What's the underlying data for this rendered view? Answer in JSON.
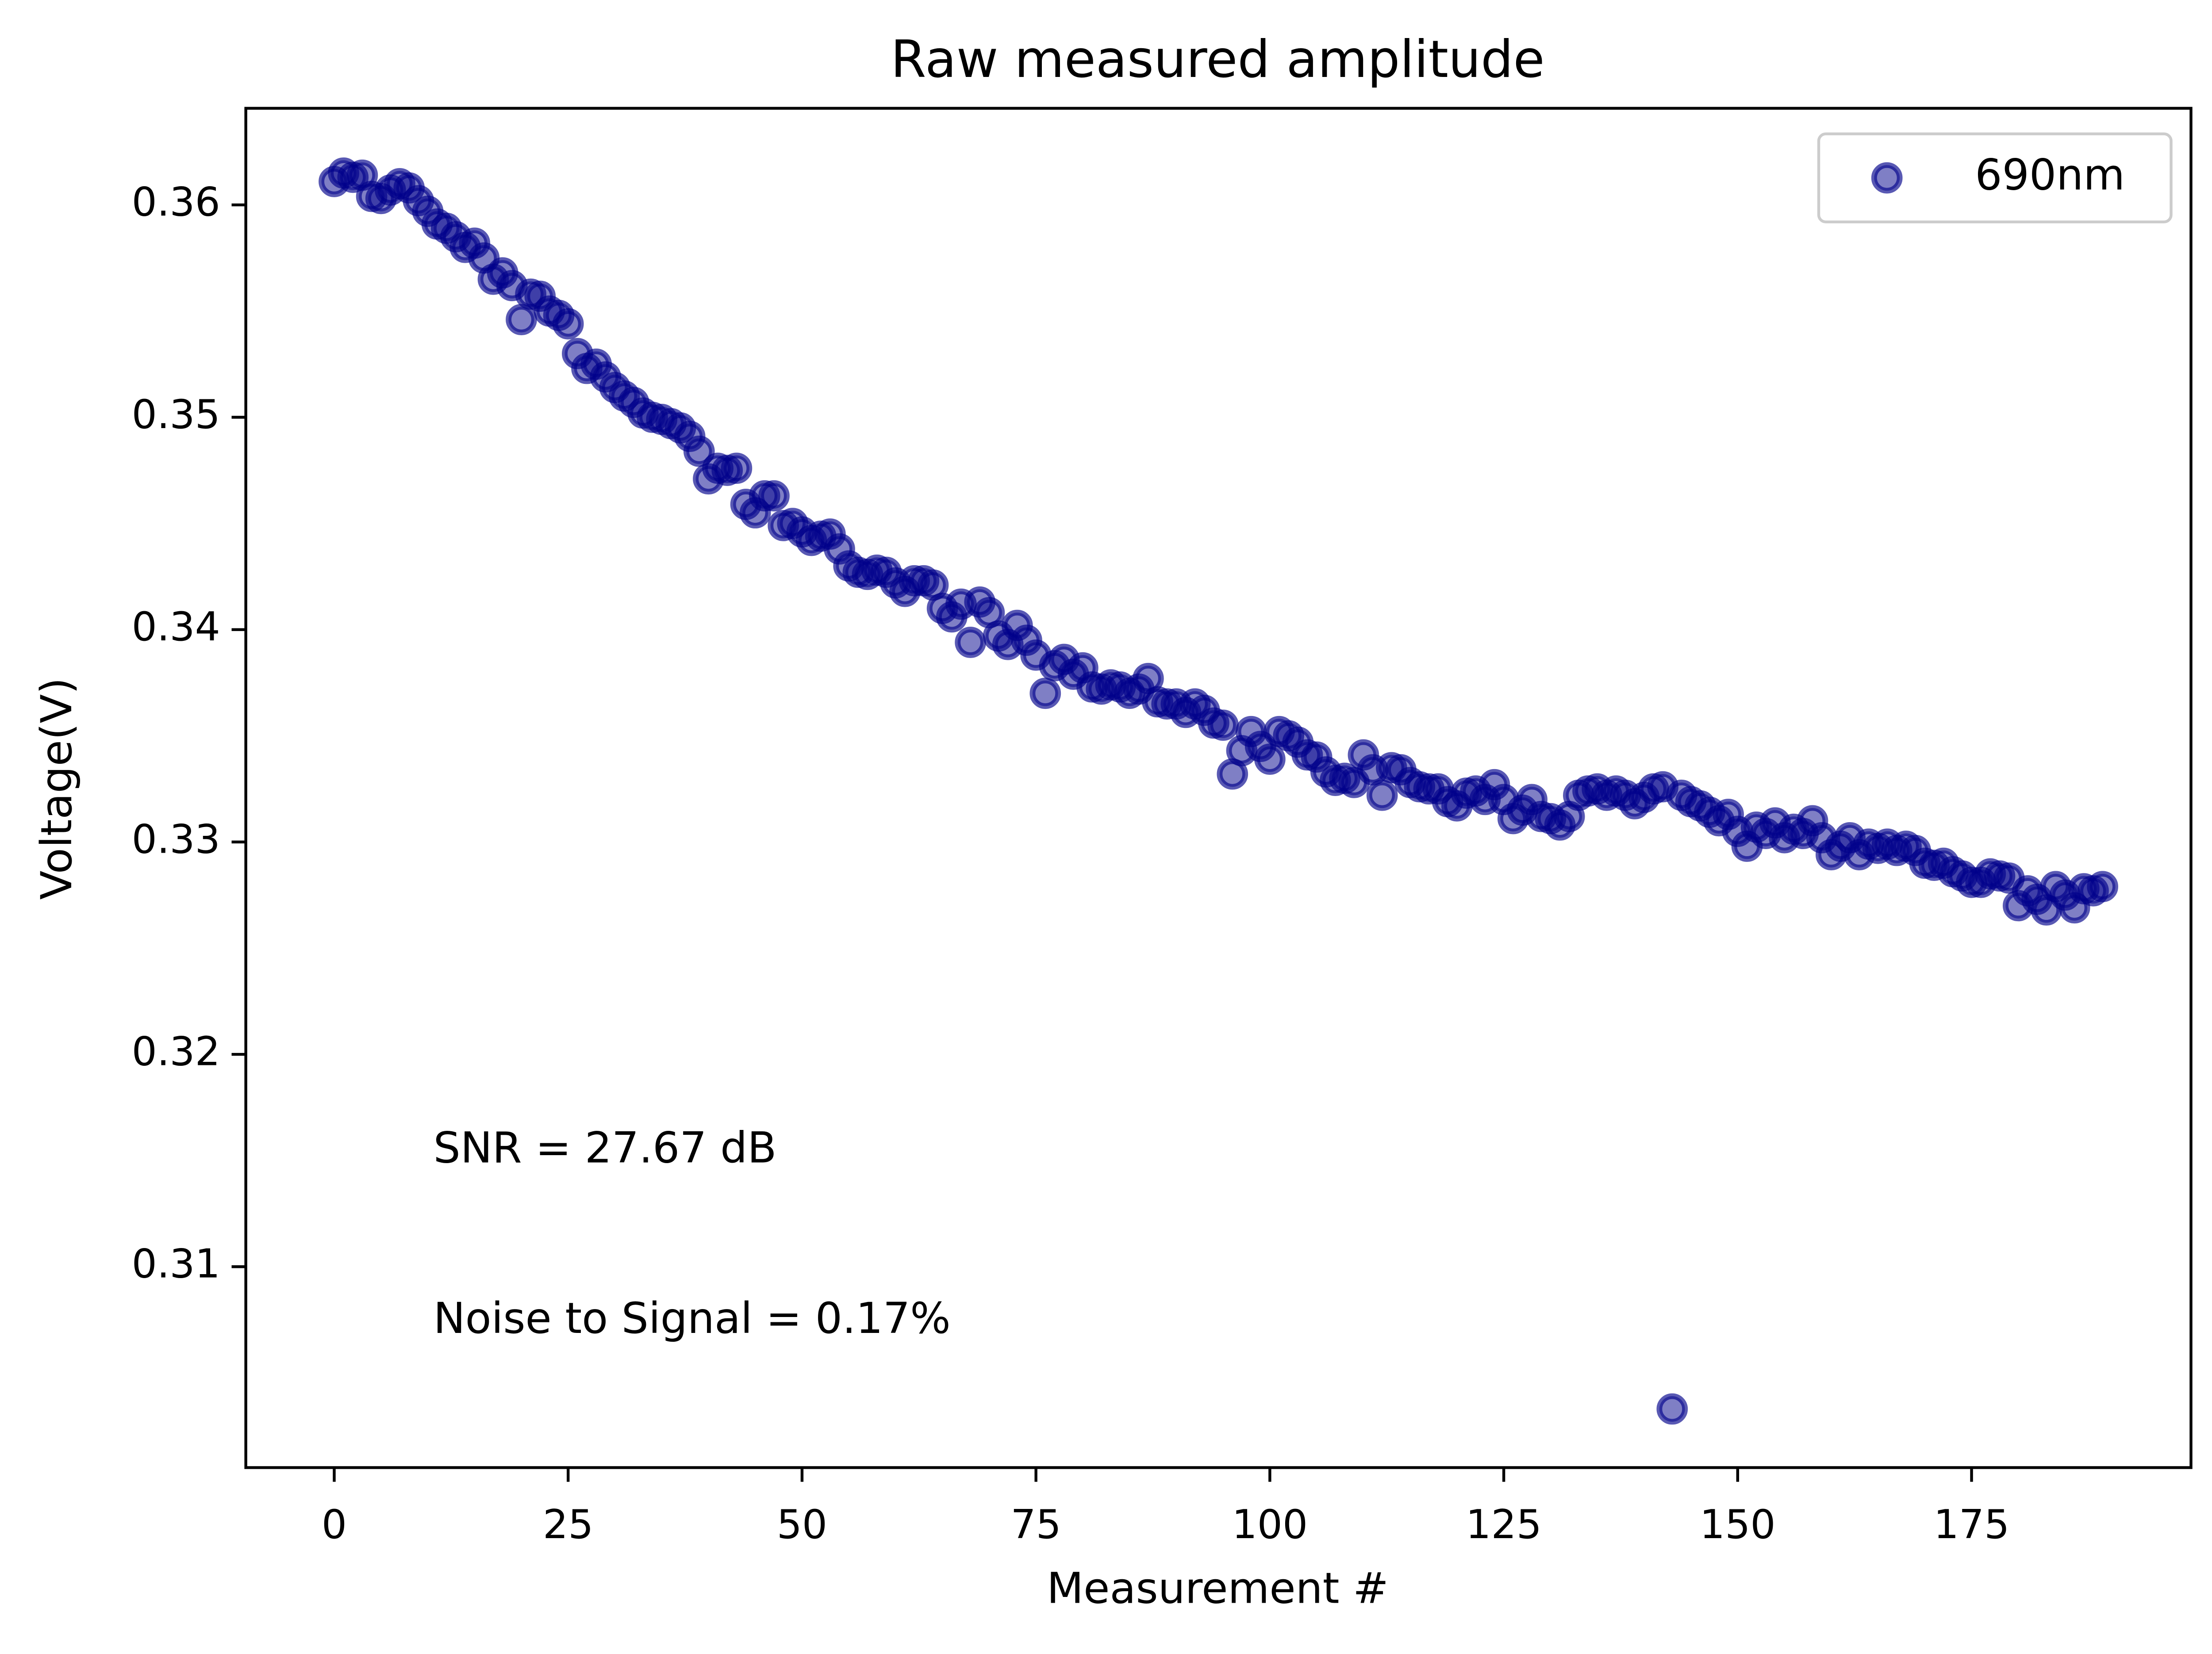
{
  "chart_data": {
    "type": "scatter",
    "title": "Raw measured amplitude",
    "x_label": "Measurement #",
    "y_label": "Voltage(V)",
    "annotations": [
      "SNR = 27.67 dB",
      "Noise to Signal = 0.17%"
    ],
    "legend": "upper right",
    "grid": false,
    "xlim": [
      -9.45,
      198.45
    ],
    "xticks": [
      0,
      25,
      50,
      75,
      100,
      125,
      150,
      175
    ],
    "ylim": [
      0.30054,
      0.36455
    ],
    "yticks": [
      0.31,
      0.32,
      0.33,
      0.34,
      0.35,
      0.36
    ],
    "x": [
      0,
      1,
      2,
      3,
      4,
      5,
      6,
      7,
      8,
      9,
      10,
      11,
      12,
      13,
      14,
      15,
      16,
      17,
      18,
      19,
      20,
      21,
      22,
      23,
      24,
      25,
      26,
      27,
      28,
      29,
      30,
      31,
      32,
      33,
      34,
      35,
      36,
      37,
      38,
      39,
      40,
      41,
      42,
      43,
      44,
      45,
      46,
      47,
      48,
      49,
      50,
      51,
      52,
      53,
      54,
      55,
      56,
      57,
      58,
      59,
      60,
      61,
      62,
      63,
      64,
      65,
      66,
      67,
      68,
      69,
      70,
      71,
      72,
      73,
      74,
      75,
      76,
      77,
      78,
      79,
      80,
      81,
      82,
      83,
      84,
      85,
      86,
      87,
      88,
      89,
      90,
      91,
      92,
      93,
      94,
      95,
      96,
      97,
      98,
      99,
      100,
      101,
      102,
      103,
      104,
      105,
      106,
      107,
      108,
      109,
      110,
      111,
      112,
      113,
      114,
      115,
      116,
      117,
      118,
      119,
      120,
      121,
      122,
      123,
      124,
      125,
      126,
      127,
      128,
      129,
      130,
      131,
      132,
      133,
      134,
      135,
      136,
      137,
      138,
      139,
      140,
      141,
      142,
      143,
      144,
      145,
      146,
      147,
      148,
      149,
      150,
      151,
      152,
      153,
      154,
      155,
      156,
      157,
      158,
      159,
      160,
      161,
      162,
      163,
      164,
      165,
      166,
      167,
      168,
      169,
      170,
      171,
      172,
      173,
      174,
      175,
      176,
      177,
      178,
      179,
      180,
      181,
      182,
      183,
      184,
      185,
      186,
      187,
      188,
      189
    ],
    "series": [
      {
        "name": "690nm",
        "color": "#00008b",
        "values": [
          0.3611,
          0.3615,
          0.3613,
          0.3614,
          0.3604,
          0.3603,
          0.3607,
          0.361,
          0.3608,
          0.3602,
          0.3597,
          0.3591,
          0.3589,
          0.3585,
          0.358,
          0.3582,
          0.3575,
          0.3565,
          0.3568,
          0.3562,
          0.3546,
          0.3558,
          0.3557,
          0.355,
          0.3548,
          0.3544,
          0.353,
          0.3523,
          0.3525,
          0.3519,
          0.3514,
          0.351,
          0.3507,
          0.3502,
          0.35,
          0.3499,
          0.3497,
          0.3495,
          0.3491,
          0.3484,
          0.3471,
          0.3476,
          0.3475,
          0.3476,
          0.3459,
          0.3455,
          0.3463,
          0.3463,
          0.3449,
          0.345,
          0.3446,
          0.3442,
          0.3444,
          0.3445,
          0.3438,
          0.343,
          0.3427,
          0.3426,
          0.3428,
          0.3427,
          0.3422,
          0.3418,
          0.3423,
          0.3423,
          0.3421,
          0.341,
          0.3406,
          0.3412,
          0.3394,
          0.3413,
          0.3408,
          0.3397,
          0.3393,
          0.3402,
          0.3395,
          0.3388,
          0.337,
          0.3383,
          0.3386,
          0.3379,
          0.3382,
          0.3373,
          0.3372,
          0.3374,
          0.3373,
          0.337,
          0.3372,
          0.3377,
          0.3366,
          0.3365,
          0.3365,
          0.3361,
          0.3365,
          0.3362,
          0.3356,
          0.3355,
          0.3332,
          0.3343,
          0.3352,
          0.3345,
          0.3339,
          0.3352,
          0.335,
          0.3347,
          0.3341,
          0.334,
          0.3333,
          0.3329,
          0.333,
          0.3328,
          0.3341,
          0.3334,
          0.3322,
          0.3335,
          0.3334,
          0.3328,
          0.3326,
          0.3325,
          0.3325,
          0.3319,
          0.3317,
          0.3323,
          0.3324,
          0.332,
          0.3327,
          0.332,
          0.3311,
          0.3315,
          0.332,
          0.3312,
          0.3311,
          0.3308,
          0.3312,
          0.3322,
          0.3324,
          0.3325,
          0.3322,
          0.3324,
          0.3322,
          0.3318,
          0.3321,
          0.3325,
          0.3326,
          0.3033,
          0.3322,
          0.3319,
          0.3317,
          0.3314,
          0.331,
          0.3313,
          0.3305,
          0.3298,
          0.3307,
          0.3304,
          0.3309,
          0.3302,
          0.3306,
          0.3304,
          0.331,
          0.3302,
          0.3294,
          0.3298,
          0.3302,
          0.3294,
          0.3299,
          0.3297,
          0.3299,
          0.3296,
          0.3298,
          0.3296,
          0.329,
          0.3289,
          0.329,
          0.3286,
          0.3284,
          0.3281,
          0.3281,
          0.3285,
          0.3284,
          0.3283,
          0.327,
          0.3277,
          0.3273,
          0.3268,
          0.3279,
          0.3275,
          0.3269,
          0.3278,
          0.3277,
          0.3279
        ]
      }
    ]
  }
}
